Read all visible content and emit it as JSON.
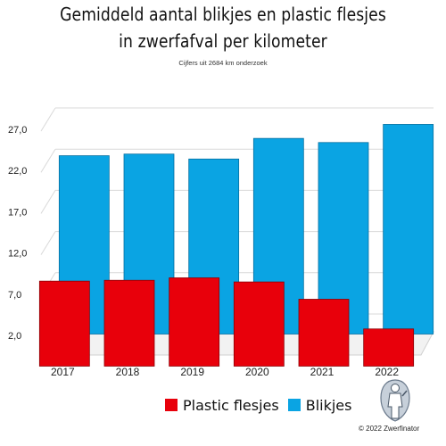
{
  "header": {
    "title_line1": "Gemiddeld aantal blikjes en plastic flesjes",
    "title_line2": "in zwerfafval per kilometer",
    "subtitle": "Cijfers uit 2684 km onderzoek"
  },
  "chart_data": {
    "type": "bar",
    "categories": [
      "2017",
      "2018",
      "2019",
      "2020",
      "2021",
      "2022"
    ],
    "series": [
      {
        "name": "Blikjes",
        "values": [
          23.8,
          24.0,
          23.4,
          25.9,
          25.4,
          27.6
        ],
        "color": "#0aa4e3"
      },
      {
        "name": "Plastic flesjes",
        "values": [
          8.8,
          8.9,
          9.2,
          8.7,
          6.6,
          3.0
        ],
        "color": "#e8000b"
      }
    ],
    "yticks": [
      2.0,
      7.0,
      12.0,
      17.0,
      22.0,
      27.0
    ],
    "ytick_labels": [
      "2,0",
      "7,0",
      "12,0",
      "17,0",
      "22,0",
      "27,0"
    ],
    "ylim": [
      0,
      30
    ],
    "grid": true,
    "legend_position": "bottom"
  },
  "legend": {
    "items": [
      {
        "label": "Plastic flesjes",
        "color": "#e8000b"
      },
      {
        "label": "Blikjes",
        "color": "#0aa4e3"
      }
    ]
  },
  "footer": {
    "copyright": "© 2022 Zwerfinator"
  },
  "logo": {
    "icon": "zwerfinator-logo"
  }
}
